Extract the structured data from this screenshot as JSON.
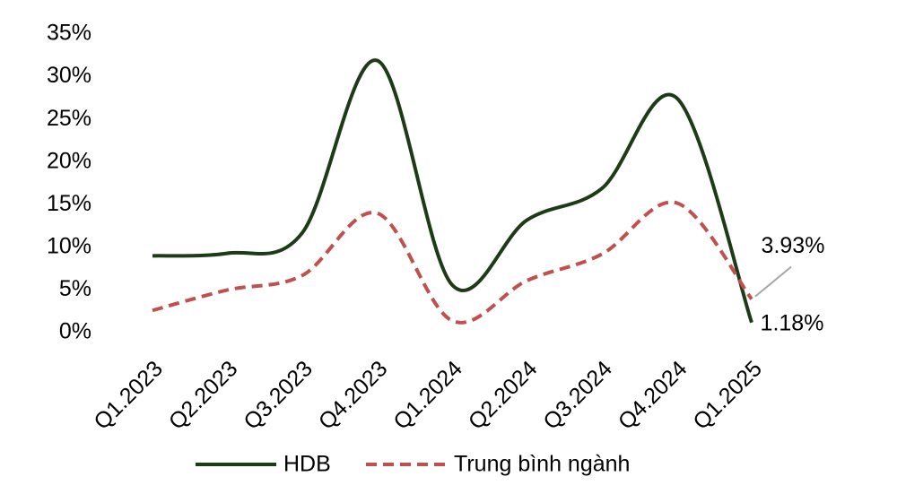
{
  "chart_data": {
    "type": "line",
    "categories": [
      "Q1.2023",
      "Q2.2023",
      "Q3.2023",
      "Q4.2023",
      "Q1.2024",
      "Q2.2024",
      "Q3.2024",
      "Q4.2024",
      "Q1.2025"
    ],
    "series": [
      {
        "name": "HDB",
        "color": "#1e3b17",
        "dash": false,
        "values": [
          9.0,
          9.3,
          11.7,
          31.9,
          5.6,
          13.2,
          16.9,
          27.5,
          1.18
        ],
        "value_labels": [
          null,
          null,
          null,
          null,
          null,
          null,
          null,
          null,
          "1.18%"
        ]
      },
      {
        "name": "Trung bình ngành",
        "color": "#c0504d",
        "dash": true,
        "values": [
          2.6,
          5.0,
          6.7,
          14.0,
          1.4,
          6.1,
          9.2,
          15.2,
          3.93
        ],
        "value_labels": [
          null,
          null,
          null,
          null,
          null,
          null,
          null,
          null,
          "3.93%"
        ]
      }
    ],
    "ylim": [
      0,
      35
    ],
    "yticks": [
      {
        "value": 0,
        "label": "0%"
      },
      {
        "value": 5,
        "label": "5%"
      },
      {
        "value": 10,
        "label": "10%"
      },
      {
        "value": 15,
        "label": "15%"
      },
      {
        "value": 20,
        "label": "20%"
      },
      {
        "value": 25,
        "label": "25%"
      },
      {
        "value": 30,
        "label": "30%"
      },
      {
        "value": 35,
        "label": "35%"
      }
    ],
    "grid": false,
    "legend": "bottom"
  }
}
